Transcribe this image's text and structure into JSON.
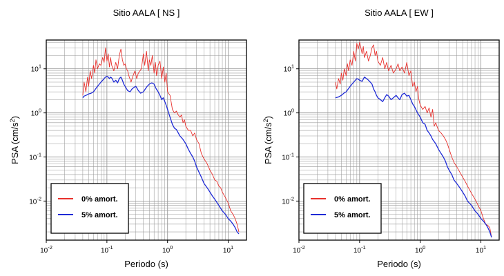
{
  "chart_data": [
    {
      "type": "line",
      "title": "Sitio AALA [ NS ]",
      "xlabel": "Periodo (s)",
      "ylabel_base": "PSA (cm/s",
      "ylabel_sup": "2",
      "ylabel_close": ")",
      "x_scale": "log",
      "y_scale": "log",
      "xlim": [
        0.01,
        20
      ],
      "ylim": [
        0.0013,
        45
      ],
      "x_ticks": [
        {
          "value": 0.01,
          "base": "10",
          "exp": "-2"
        },
        {
          "value": 0.1,
          "base": "10",
          "exp": "-1"
        },
        {
          "value": 1,
          "base": "10",
          "exp": "0"
        },
        {
          "value": 10,
          "base": "10",
          "exp": "1"
        }
      ],
      "y_ticks": [
        {
          "value": 0.01,
          "base": "10",
          "exp": "-2"
        },
        {
          "value": 0.1,
          "base": "10",
          "exp": "-1"
        },
        {
          "value": 1,
          "base": "10",
          "exp": "0"
        },
        {
          "value": 10,
          "base": "10",
          "exp": "1"
        }
      ],
      "grid": true,
      "legend_position": "bottom-left",
      "series": [
        {
          "name": "0% amort.",
          "color": "#e8302c",
          "x": [
            0.04,
            0.042,
            0.045,
            0.048,
            0.05,
            0.053,
            0.056,
            0.06,
            0.063,
            0.066,
            0.07,
            0.075,
            0.08,
            0.085,
            0.09,
            0.095,
            0.1,
            0.105,
            0.11,
            0.115,
            0.12,
            0.13,
            0.14,
            0.15,
            0.16,
            0.17,
            0.18,
            0.19,
            0.2,
            0.21,
            0.22,
            0.23,
            0.25,
            0.27,
            0.29,
            0.31,
            0.33,
            0.35,
            0.37,
            0.4,
            0.42,
            0.45,
            0.48,
            0.5,
            0.53,
            0.56,
            0.6,
            0.63,
            0.66,
            0.7,
            0.75,
            0.8,
            0.85,
            0.9,
            0.95,
            1.0,
            1.1,
            1.2,
            1.3,
            1.4,
            1.5,
            1.6,
            1.7,
            1.8,
            1.9,
            2.0,
            2.2,
            2.4,
            2.6,
            2.8,
            3.0,
            3.3,
            3.6,
            4.0,
            4.5,
            5.0,
            5.5,
            6.0,
            6.5,
            7.0,
            7.5,
            8.0,
            9.0,
            10.0,
            11.0,
            12.0,
            13.0,
            14.0,
            15.0
          ],
          "y": [
            2.5,
            5.0,
            3.0,
            6.5,
            4.0,
            9.0,
            6.0,
            12.0,
            8.0,
            16.0,
            10.0,
            13.0,
            12.0,
            18.0,
            14.0,
            30.0,
            15.0,
            22.0,
            11.0,
            18.0,
            12.0,
            9.0,
            14.0,
            10.0,
            20.0,
            28.0,
            16.0,
            12.0,
            13.0,
            10.0,
            9.0,
            7.0,
            5.0,
            7.0,
            9.0,
            6.0,
            8.0,
            9.0,
            10.0,
            22.0,
            12.0,
            25.0,
            9.0,
            16.0,
            12.0,
            20.0,
            8.0,
            14.0,
            7.0,
            12.0,
            15.0,
            6.0,
            11.0,
            5.0,
            8.0,
            3.0,
            2.5,
            1.2,
            1.0,
            1.1,
            0.9,
            0.8,
            0.9,
            0.6,
            0.7,
            0.5,
            0.4,
            0.4,
            0.3,
            0.35,
            0.25,
            0.2,
            0.12,
            0.09,
            0.07,
            0.05,
            0.04,
            0.03,
            0.028,
            0.022,
            0.02,
            0.016,
            0.012,
            0.009,
            0.006,
            0.005,
            0.004,
            0.003,
            0.002
          ]
        },
        {
          "name": "5% amort.",
          "color": "#1f2bd6",
          "x": [
            0.04,
            0.042,
            0.045,
            0.048,
            0.05,
            0.055,
            0.06,
            0.065,
            0.07,
            0.075,
            0.08,
            0.085,
            0.09,
            0.095,
            0.1,
            0.105,
            0.11,
            0.115,
            0.12,
            0.13,
            0.14,
            0.15,
            0.16,
            0.17,
            0.18,
            0.19,
            0.2,
            0.22,
            0.24,
            0.26,
            0.28,
            0.3,
            0.33,
            0.36,
            0.4,
            0.43,
            0.46,
            0.5,
            0.55,
            0.6,
            0.65,
            0.7,
            0.75,
            0.8,
            0.85,
            0.9,
            0.95,
            1.0,
            1.1,
            1.2,
            1.3,
            1.4,
            1.5,
            1.6,
            1.8,
            2.0,
            2.2,
            2.4,
            2.6,
            2.8,
            3.0,
            3.3,
            3.6,
            4.0,
            4.5,
            5.0,
            5.5,
            6.0,
            7.0,
            8.0,
            9.0,
            10.0,
            11.0,
            12.0,
            13.0,
            14.0,
            15.0
          ],
          "y": [
            2.2,
            2.4,
            2.5,
            2.6,
            2.7,
            2.8,
            3.0,
            3.5,
            4.0,
            4.5,
            5.0,
            5.5,
            6.0,
            6.5,
            6.8,
            6.5,
            6.0,
            6.5,
            6.2,
            5.0,
            5.5,
            4.8,
            6.0,
            6.5,
            5.5,
            4.5,
            4.0,
            3.2,
            3.0,
            3.5,
            3.8,
            4.0,
            3.2,
            2.8,
            3.0,
            3.5,
            4.0,
            4.5,
            4.8,
            4.5,
            3.5,
            3.0,
            2.5,
            2.0,
            2.2,
            1.8,
            1.5,
            1.2,
            0.8,
            0.55,
            0.45,
            0.42,
            0.35,
            0.3,
            0.25,
            0.2,
            0.15,
            0.12,
            0.1,
            0.08,
            0.06,
            0.045,
            0.035,
            0.025,
            0.02,
            0.016,
            0.013,
            0.011,
            0.008,
            0.006,
            0.005,
            0.004,
            0.0035,
            0.003,
            0.0025,
            0.002,
            0.0018
          ]
        }
      ]
    },
    {
      "type": "line",
      "title": "Sitio AALA [ EW ]",
      "xlabel": "Periodo (s)",
      "ylabel_base": "PSA (cm/s",
      "ylabel_sup": "2",
      "ylabel_close": ")",
      "x_scale": "log",
      "y_scale": "log",
      "xlim": [
        0.01,
        20
      ],
      "ylim": [
        0.0013,
        45
      ],
      "x_ticks": [
        {
          "value": 0.01,
          "base": "10",
          "exp": "-2"
        },
        {
          "value": 0.1,
          "base": "10",
          "exp": "-1"
        },
        {
          "value": 1,
          "base": "10",
          "exp": "0"
        },
        {
          "value": 10,
          "base": "10",
          "exp": "1"
        }
      ],
      "y_ticks": [
        {
          "value": 0.01,
          "base": "10",
          "exp": "-2"
        },
        {
          "value": 0.1,
          "base": "10",
          "exp": "-1"
        },
        {
          "value": 1,
          "base": "10",
          "exp": "0"
        },
        {
          "value": 10,
          "base": "10",
          "exp": "1"
        }
      ],
      "grid": true,
      "legend_position": "bottom-left",
      "series": [
        {
          "name": "0% amort.",
          "color": "#e8302c",
          "x": [
            0.04,
            0.042,
            0.045,
            0.048,
            0.05,
            0.053,
            0.056,
            0.06,
            0.063,
            0.066,
            0.07,
            0.075,
            0.08,
            0.085,
            0.09,
            0.095,
            0.1,
            0.105,
            0.11,
            0.115,
            0.12,
            0.13,
            0.14,
            0.15,
            0.16,
            0.17,
            0.18,
            0.19,
            0.2,
            0.22,
            0.24,
            0.26,
            0.28,
            0.3,
            0.33,
            0.36,
            0.4,
            0.43,
            0.46,
            0.5,
            0.55,
            0.6,
            0.65,
            0.7,
            0.75,
            0.8,
            0.85,
            0.9,
            0.95,
            1.0,
            1.1,
            1.2,
            1.3,
            1.4,
            1.5,
            1.6,
            1.7,
            1.8,
            2.0,
            2.2,
            2.4,
            2.6,
            2.8,
            3.0,
            3.3,
            3.6,
            4.0,
            4.5,
            5.0,
            5.5,
            6.0,
            7.0,
            8.0,
            9.0,
            10.0,
            11.0,
            12.0,
            13.0,
            14.0,
            15.0
          ],
          "y": [
            5.0,
            3.5,
            6.0,
            4.5,
            8.0,
            5.5,
            10.0,
            7.0,
            13.0,
            9.0,
            16.0,
            12.0,
            25.0,
            15.0,
            38.0,
            28.0,
            40.0,
            30.0,
            22.0,
            32.0,
            18.0,
            25.0,
            15.0,
            20.0,
            30.0,
            35.0,
            20.0,
            25.0,
            15.0,
            12.0,
            18.0,
            10.0,
            14.0,
            9.0,
            12.0,
            8.0,
            10.0,
            13.0,
            9.0,
            11.0,
            8.0,
            14.0,
            7.0,
            9.0,
            4.0,
            5.0,
            3.0,
            4.0,
            2.0,
            1.5,
            1.2,
            1.4,
            1.0,
            1.3,
            0.8,
            1.2,
            0.5,
            0.6,
            0.4,
            0.35,
            0.3,
            0.25,
            0.2,
            0.15,
            0.1,
            0.075,
            0.06,
            0.045,
            0.035,
            0.028,
            0.022,
            0.015,
            0.011,
            0.008,
            0.006,
            0.004,
            0.003,
            0.0028,
            0.0025,
            0.0015
          ]
        },
        {
          "name": "5% amort.",
          "color": "#1f2bd6",
          "x": [
            0.04,
            0.045,
            0.05,
            0.055,
            0.06,
            0.065,
            0.07,
            0.075,
            0.08,
            0.085,
            0.09,
            0.095,
            0.1,
            0.11,
            0.12,
            0.13,
            0.14,
            0.15,
            0.16,
            0.17,
            0.18,
            0.19,
            0.2,
            0.22,
            0.24,
            0.26,
            0.28,
            0.3,
            0.33,
            0.36,
            0.4,
            0.43,
            0.46,
            0.5,
            0.55,
            0.6,
            0.65,
            0.7,
            0.75,
            0.8,
            0.9,
            1.0,
            1.1,
            1.2,
            1.3,
            1.4,
            1.5,
            1.6,
            1.8,
            2.0,
            2.2,
            2.4,
            2.6,
            2.8,
            3.0,
            3.3,
            3.6,
            4.0,
            4.5,
            5.0,
            5.5,
            6.0,
            7.0,
            8.0,
            9.0,
            10.0,
            11.0,
            12.0,
            13.0,
            14.0,
            15.0
          ],
          "y": [
            2.2,
            2.3,
            2.5,
            2.8,
            3.0,
            3.5,
            4.0,
            4.5,
            5.0,
            5.5,
            6.0,
            5.8,
            5.5,
            5.2,
            6.5,
            6.0,
            5.5,
            5.0,
            4.5,
            3.5,
            3.0,
            2.5,
            2.2,
            2.0,
            1.8,
            2.2,
            2.6,
            2.4,
            2.0,
            2.2,
            2.5,
            2.2,
            2.0,
            2.6,
            2.8,
            2.4,
            2.5,
            2.0,
            1.6,
            1.4,
            1.0,
            0.8,
            0.6,
            0.55,
            0.4,
            0.35,
            0.3,
            0.25,
            0.2,
            0.15,
            0.12,
            0.1,
            0.08,
            0.06,
            0.05,
            0.04,
            0.03,
            0.025,
            0.02,
            0.016,
            0.013,
            0.01,
            0.008,
            0.006,
            0.005,
            0.004,
            0.0035,
            0.003,
            0.0025,
            0.002,
            0.0015
          ]
        }
      ]
    }
  ]
}
